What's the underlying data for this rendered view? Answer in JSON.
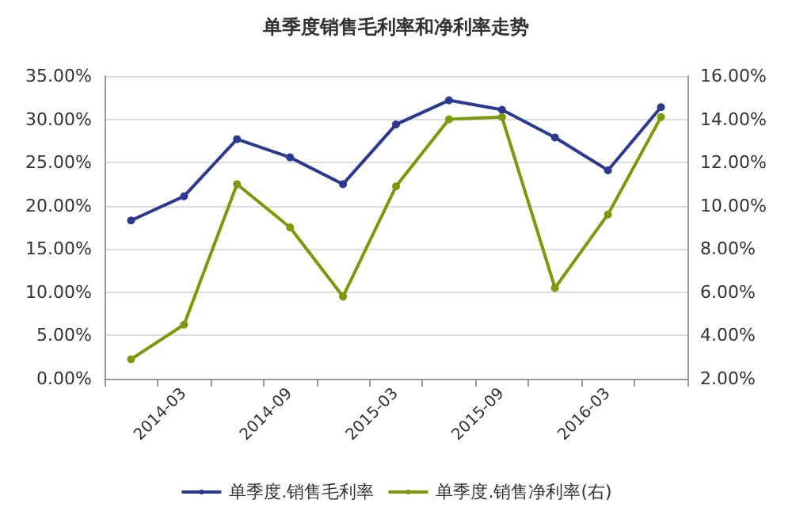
{
  "chart_data": {
    "type": "line",
    "title": "单季度销售毛利率和净利率走势",
    "categories": [
      null,
      "2014-03",
      null,
      "2014-09",
      null,
      "2015-03",
      null,
      "2015-09",
      null,
      "2016-03",
      null
    ],
    "series": [
      {
        "name": "单季度.销售毛利率",
        "color": "#2b3990",
        "values": [
          18.3,
          21.1,
          27.7,
          25.6,
          22.5,
          29.4,
          32.2,
          31.1,
          27.9,
          24.1,
          31.4
        ]
      },
      {
        "name": "单季度.销售净利率(右)",
        "color": "#7a9a0a",
        "axis": "y2",
        "values": [
          2.9,
          4.5,
          11.0,
          9.0,
          5.8,
          10.9,
          14.0,
          14.1,
          6.2,
          9.6,
          14.1
        ]
      }
    ],
    "ylim": [
      0,
      35
    ],
    "yticks": [
      {
        "value": 0,
        "label": "0.00%"
      },
      {
        "value": 5,
        "label": "5.00%"
      },
      {
        "value": 10,
        "label": "10.00%"
      },
      {
        "value": 15,
        "label": "15.00%"
      },
      {
        "value": 20,
        "label": "20.00%"
      },
      {
        "value": 25,
        "label": "25.00%"
      },
      {
        "value": 30,
        "label": "30.00%"
      },
      {
        "value": 35,
        "label": "35.00%"
      }
    ],
    "y2lim": [
      2,
      16
    ],
    "y2ticks": [
      {
        "value": 2,
        "label": "2.00%"
      },
      {
        "value": 4,
        "label": "4.00%"
      },
      {
        "value": 6,
        "label": "6.00%"
      },
      {
        "value": 8,
        "label": "8.00%"
      },
      {
        "value": 10,
        "label": "10.00%"
      },
      {
        "value": 12,
        "label": "12.00%"
      },
      {
        "value": 14,
        "label": "14.00%"
      },
      {
        "value": 16,
        "label": "16.00%"
      }
    ],
    "grid": "y",
    "legend": "bottom",
    "marker": "circle",
    "line_style": "solid"
  }
}
